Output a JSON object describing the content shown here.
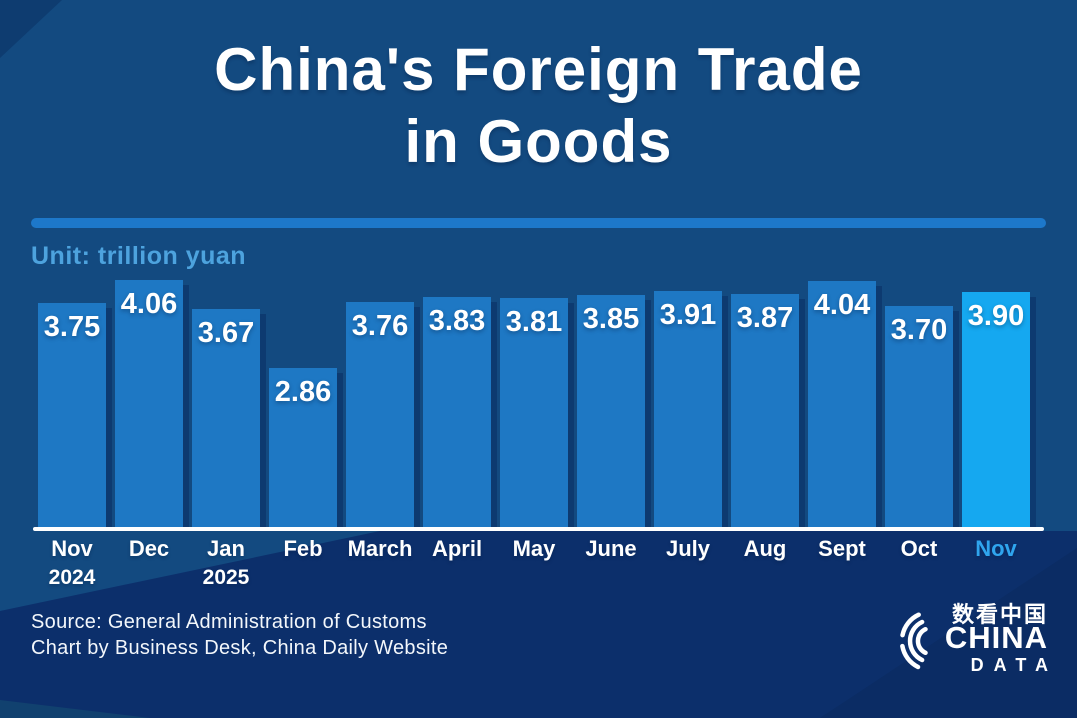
{
  "title": {
    "line1": "China's Foreign Trade",
    "line2": "in Goods"
  },
  "unit_label": "Unit: trillion yuan",
  "chart_data": {
    "type": "bar",
    "title": "China's Foreign Trade in Goods",
    "ylabel": "trillion yuan",
    "ylim": [
      0,
      4.3
    ],
    "grid": false,
    "legend": "none",
    "categories": [
      "Nov 2024",
      "Dec",
      "Jan 2025",
      "Feb",
      "March",
      "April",
      "May",
      "June",
      "July",
      "Aug",
      "Sept",
      "Oct",
      "Nov"
    ],
    "values": [
      3.75,
      4.06,
      3.67,
      2.86,
      3.76,
      3.83,
      3.81,
      3.85,
      3.91,
      3.87,
      4.04,
      3.7,
      3.9
    ],
    "bars": [
      {
        "month": "Nov",
        "year": "2024",
        "value": "3.75",
        "highlight": false
      },
      {
        "month": "Dec",
        "year": "",
        "value": "4.06",
        "highlight": false
      },
      {
        "month": "Jan",
        "year": "2025",
        "value": "3.67",
        "highlight": false
      },
      {
        "month": "Feb",
        "year": "",
        "value": "2.86",
        "highlight": false
      },
      {
        "month": "March",
        "year": "",
        "value": "3.76",
        "highlight": false
      },
      {
        "month": "April",
        "year": "",
        "value": "3.83",
        "highlight": false
      },
      {
        "month": "May",
        "year": "",
        "value": "3.81",
        "highlight": false
      },
      {
        "month": "June",
        "year": "",
        "value": "3.85",
        "highlight": false
      },
      {
        "month": "July",
        "year": "",
        "value": "3.91",
        "highlight": false
      },
      {
        "month": "Aug",
        "year": "",
        "value": "3.87",
        "highlight": false
      },
      {
        "month": "Sept",
        "year": "",
        "value": "4.04",
        "highlight": false
      },
      {
        "month": "Oct",
        "year": "",
        "value": "3.70",
        "highlight": false
      },
      {
        "month": "Nov",
        "year": "",
        "value": "3.90",
        "highlight": true
      }
    ],
    "highlight_index": 12
  },
  "source": {
    "line1": "Source: General Administration of Customs",
    "line2": "Chart by Business Desk, China Daily Website"
  },
  "logo": {
    "chinese": "数看中国",
    "name": "CHINA",
    "sub": "DATA"
  },
  "colors": {
    "background": "#134a80",
    "background_dark": "#0c2f6b",
    "bar": "#1e78c4",
    "bar_highlight": "#15a8f0",
    "bar_shadow": "#0d3a70",
    "divider": "#1d78ca",
    "unit_text": "#4da3de",
    "highlight_label": "#2fa5ee",
    "axis": "#ffffff",
    "text": "#ffffff"
  }
}
